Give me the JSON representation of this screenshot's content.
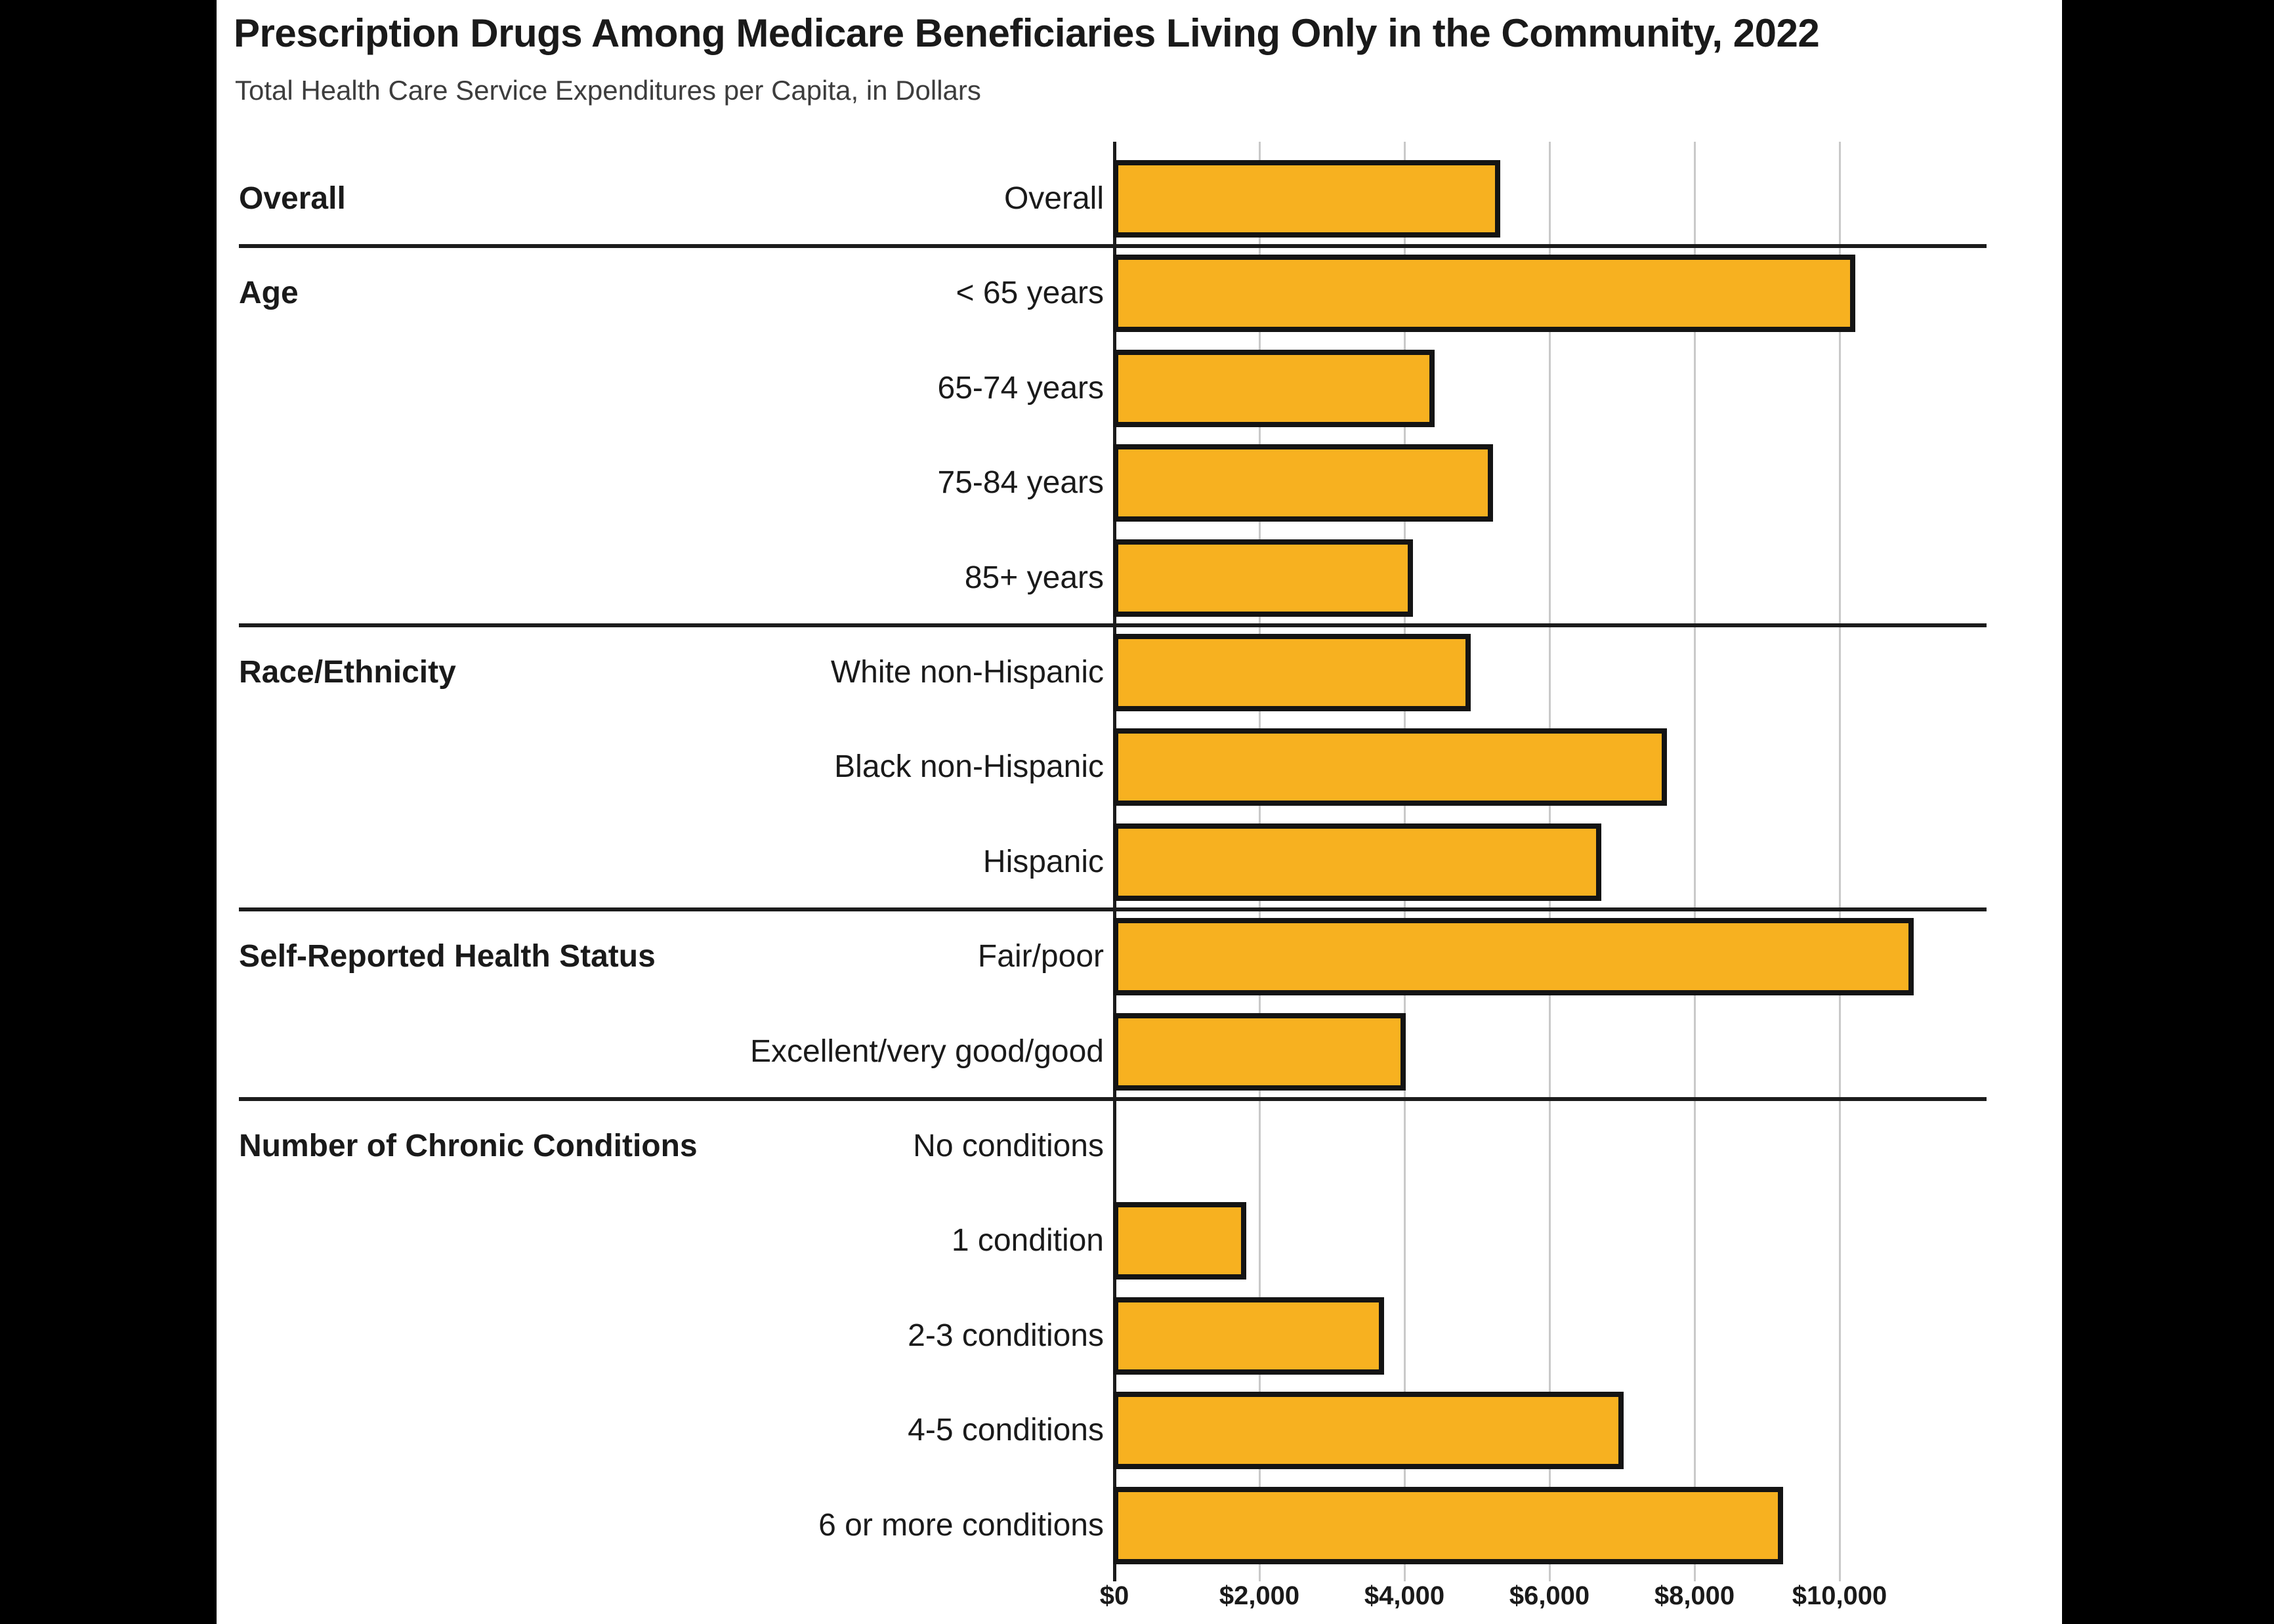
{
  "colors": {
    "frame_bg": "#000000",
    "panel_bg": "#FFFFFF",
    "title_text": "#1A1A1A",
    "subtitle_text": "#3D3D3D",
    "label_text": "#1A1A1A",
    "bar_fill": "#F7B120",
    "bar_border": "#141414",
    "gridline": "#C9C9C9",
    "axis": "#1C1C1C",
    "separator": "#1C1C1C"
  },
  "chart_data": {
    "type": "bar",
    "orientation": "horizontal",
    "title": "Prescription Drugs Among Medicare Beneficiaries Living Only in the Community, 2022",
    "subtitle": "Total Health Care Service Expenditures per Capita, in Dollars",
    "xlabel": "",
    "ylabel": "",
    "value_unit": "dollars per capita",
    "xlim": [
      0,
      12000
    ],
    "grid": true,
    "legend_position": "none",
    "x_ticks": [
      {
        "value": 0,
        "label": "$0"
      },
      {
        "value": 2000,
        "label": "$2,000"
      },
      {
        "value": 4000,
        "label": "$4,000"
      },
      {
        "value": 6000,
        "label": "$6,000"
      },
      {
        "value": 8000,
        "label": "$8,000"
      },
      {
        "value": 10000,
        "label": "$10,000"
      }
    ],
    "groups": [
      {
        "label": "Overall",
        "rows": [
          {
            "label": "Overall",
            "value": 5300
          }
        ]
      },
      {
        "label": "Age",
        "rows": [
          {
            "label": "< 65 years",
            "value": 10200
          },
          {
            "label": "65-74 years",
            "value": 4400
          },
          {
            "label": "75-84 years",
            "value": 5200
          },
          {
            "label": "85+ years",
            "value": 4100
          }
        ]
      },
      {
        "label": "Race/Ethnicity",
        "rows": [
          {
            "label": "White non-Hispanic",
            "value": 4900
          },
          {
            "label": "Black non-Hispanic",
            "value": 7600
          },
          {
            "label": "Hispanic",
            "value": 6700
          }
        ]
      },
      {
        "label": "Self-Reported Health Status",
        "rows": [
          {
            "label": "Fair/poor",
            "value": 11000
          },
          {
            "label": "Excellent/very good/good",
            "value": 4000
          }
        ]
      },
      {
        "label": "Number of Chronic Conditions",
        "rows": [
          {
            "label": "No conditions",
            "value": 0
          },
          {
            "label": "1 condition",
            "value": 1800
          },
          {
            "label": "2-3 conditions",
            "value": 3700
          },
          {
            "label": "4-5 conditions",
            "value": 7000
          },
          {
            "label": "6 or more conditions",
            "value": 9200
          }
        ]
      }
    ]
  }
}
